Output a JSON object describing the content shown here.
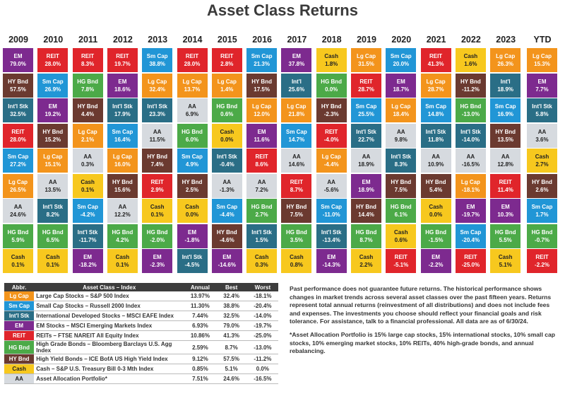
{
  "title": "Asset Class Returns",
  "colors": {
    "Lg Cap": "#f3941c",
    "Sm Cap": "#2196d6",
    "Int'l Stk": "#2a6e86",
    "EM": "#7d2a8f",
    "REIT": "#e0252b",
    "HG Bnd": "#4caa48",
    "HY Bnd": "#6b3a30",
    "Cash": "#f7c81e",
    "AA": "#d6dadf"
  },
  "chart_data": {
    "type": "table",
    "years": [
      "2009",
      "2010",
      "2011",
      "2012",
      "2013",
      "2014",
      "2015",
      "2016",
      "2017",
      "2018",
      "2019",
      "2020",
      "2021",
      "2022",
      "2023"
    ],
    "ytd_label": "YTD",
    "columns": [
      [
        [
          "EM",
          "79.0%"
        ],
        [
          "HY Bnd",
          "57.5%"
        ],
        [
          "Int'l Stk",
          "32.5%"
        ],
        [
          "REIT",
          "28.0%"
        ],
        [
          "Sm Cap",
          "27.2%"
        ],
        [
          "Lg Cap",
          "26.5%"
        ],
        [
          "AA",
          "24.6%"
        ],
        [
          "HG Bnd",
          "5.9%"
        ],
        [
          "Cash",
          "0.1%"
        ]
      ],
      [
        [
          "REIT",
          "28.0%"
        ],
        [
          "Sm Cap",
          "26.9%"
        ],
        [
          "EM",
          "19.2%"
        ],
        [
          "HY Bnd",
          "15.2%"
        ],
        [
          "Lg Cap",
          "15.1%"
        ],
        [
          "AA",
          "13.5%"
        ],
        [
          "Int'l Stk",
          "8.2%"
        ],
        [
          "HG Bnd",
          "6.5%"
        ],
        [
          "Cash",
          "0.1%"
        ]
      ],
      [
        [
          "REIT",
          "8.3%"
        ],
        [
          "HG Bnd",
          "7.8%"
        ],
        [
          "HY Bnd",
          "4.4%"
        ],
        [
          "Lg Cap",
          "2.1%"
        ],
        [
          "AA",
          "0.3%"
        ],
        [
          "Cash",
          "0.1%"
        ],
        [
          "Sm Cap",
          "-4.2%"
        ],
        [
          "Int'l Stk",
          "-11.7%"
        ],
        [
          "EM",
          "-18.2%"
        ]
      ],
      [
        [
          "REIT",
          "19.7%"
        ],
        [
          "EM",
          "18.6%"
        ],
        [
          "Int'l Stk",
          "17.9%"
        ],
        [
          "Sm Cap",
          "16.4%"
        ],
        [
          "Lg Cap",
          "16.0%"
        ],
        [
          "HY Bnd",
          "15.6%"
        ],
        [
          "AA",
          "12.2%"
        ],
        [
          "HG Bnd",
          "4.2%"
        ],
        [
          "Cash",
          "0.1%"
        ]
      ],
      [
        [
          "Sm Cap",
          "38.8%"
        ],
        [
          "Lg Cap",
          "32.4%"
        ],
        [
          "Int'l Stk",
          "23.3%"
        ],
        [
          "AA",
          "11.5%"
        ],
        [
          "HY Bnd",
          "7.4%"
        ],
        [
          "REIT",
          "2.9%"
        ],
        [
          "Cash",
          "0.1%"
        ],
        [
          "HG Bnd",
          "-2.0%"
        ],
        [
          "EM",
          "-2.3%"
        ]
      ],
      [
        [
          "REIT",
          "28.0%"
        ],
        [
          "Lg Cap",
          "13.7%"
        ],
        [
          "AA",
          "6.9%"
        ],
        [
          "HG Bnd",
          "6.0%"
        ],
        [
          "Sm Cap",
          "4.9%"
        ],
        [
          "HY Bnd",
          "2.5%"
        ],
        [
          "Cash",
          "0.0%"
        ],
        [
          "EM",
          "-1.8%"
        ],
        [
          "Int'l Stk",
          "-4.5%"
        ]
      ],
      [
        [
          "REIT",
          "2.8%"
        ],
        [
          "Lg Cap",
          "1.4%"
        ],
        [
          "HG Bnd",
          "0.6%"
        ],
        [
          "Cash",
          "0.0%"
        ],
        [
          "Int'l Stk",
          "-0.4%"
        ],
        [
          "AA",
          "-1.3%"
        ],
        [
          "Sm Cap",
          "-4.4%"
        ],
        [
          "HY Bnd",
          "-4.6%"
        ],
        [
          "EM",
          "-14.6%"
        ]
      ],
      [
        [
          "Sm Cap",
          "21.3%"
        ],
        [
          "HY Bnd",
          "17.5%"
        ],
        [
          "Lg Cap",
          "12.0%"
        ],
        [
          "EM",
          "11.6%"
        ],
        [
          "REIT",
          "8.6%"
        ],
        [
          "AA",
          "7.2%"
        ],
        [
          "HG Bnd",
          "2.7%"
        ],
        [
          "Int'l Stk",
          "1.5%"
        ],
        [
          "Cash",
          "0.3%"
        ]
      ],
      [
        [
          "EM",
          "37.8%"
        ],
        [
          "Int'l",
          "25.6%"
        ],
        [
          "Lg Cap",
          "21.8%"
        ],
        [
          "Sm Cap",
          "14.7%"
        ],
        [
          "AA",
          "14.6%"
        ],
        [
          "REIT",
          "8.7%"
        ],
        [
          "HY Bnd",
          "7.5%"
        ],
        [
          "HG Bnd",
          "3.5%"
        ],
        [
          "Cash",
          "0.8%"
        ]
      ],
      [
        [
          "Cash",
          "1.8%"
        ],
        [
          "HG Bnd",
          "0.0%"
        ],
        [
          "HY Bnd",
          "-2.3%"
        ],
        [
          "REIT",
          "-4.0%"
        ],
        [
          "Lg Cap",
          "-4.4%"
        ],
        [
          "AA",
          "-5.6%"
        ],
        [
          "Sm Cap",
          "-11.0%"
        ],
        [
          "Int'l Stk",
          "-13.4%"
        ],
        [
          "EM",
          "-14.3%"
        ]
      ],
      [
        [
          "Lg Cap",
          "31.5%"
        ],
        [
          "REIT",
          "28.7%"
        ],
        [
          "Sm Cap",
          "25.5%"
        ],
        [
          "Int'l Stk",
          "22.7%"
        ],
        [
          "AA",
          "18.9%"
        ],
        [
          "EM",
          "18.9%"
        ],
        [
          "HY Bnd",
          "14.4%"
        ],
        [
          "HG Bnd",
          "8.7%"
        ],
        [
          "Cash",
          "2.2%"
        ]
      ],
      [
        [
          "Sm Cap",
          "20.0%"
        ],
        [
          "EM",
          "18.7%"
        ],
        [
          "Lg Cap",
          "18.4%"
        ],
        [
          "AA",
          "9.8%"
        ],
        [
          "Int'l Stk",
          "8.3%"
        ],
        [
          "HY Bnd",
          "7.5%"
        ],
        [
          "HG Bnd",
          "6.1%"
        ],
        [
          "Cash",
          "0.6%"
        ],
        [
          "REIT",
          "-5.1%"
        ]
      ],
      [
        [
          "REIT",
          "41.3%"
        ],
        [
          "Lg Cap",
          "28.7%"
        ],
        [
          "Sm Cap",
          "14.8%"
        ],
        [
          "Int'l Stk",
          "11.8%"
        ],
        [
          "AA",
          "10.9%"
        ],
        [
          "HY Bnd",
          "5.4%"
        ],
        [
          "Cash",
          "0.0%"
        ],
        [
          "HG Bnd",
          "-1.5%"
        ],
        [
          "EM",
          "-2.2%"
        ]
      ],
      [
        [
          "Cash",
          "1.6%"
        ],
        [
          "HY Bnd",
          "-11.2%"
        ],
        [
          "HG Bnd",
          "-13.0%"
        ],
        [
          "Int'l Stk",
          "-14.0%"
        ],
        [
          "AA",
          "-16.5%"
        ],
        [
          "Lg Cap",
          "-18.1%"
        ],
        [
          "EM",
          "-19.7%"
        ],
        [
          "Sm Cap",
          "-20.4%"
        ],
        [
          "REIT",
          "-25.0%"
        ]
      ],
      [
        [
          "Lg Cap",
          "26.3%"
        ],
        [
          "Int'l",
          "18.9%"
        ],
        [
          "Sm Cap",
          "16.9%"
        ],
        [
          "HY Bnd",
          "13.5%"
        ],
        [
          "AA",
          "12.8%"
        ],
        [
          "REIT",
          "11.4%"
        ],
        [
          "EM",
          "10.3%"
        ],
        [
          "HG Bnd",
          "5.5%"
        ],
        [
          "Cash",
          "5.1%"
        ]
      ]
    ],
    "ytd": [
      [
        "Lg Cap",
        "15.3%"
      ],
      [
        "EM",
        "7.7%"
      ],
      [
        "Int'l Stk",
        "5.8%"
      ],
      [
        "AA",
        "3.6%"
      ],
      [
        "Cash",
        "2.7%"
      ],
      [
        "HY Bnd",
        "2.6%"
      ],
      [
        "Sm Cap",
        "1.7%"
      ],
      [
        "HG Bnd",
        "-0.7%"
      ],
      [
        "REIT",
        "-2.2%"
      ]
    ]
  },
  "legend": {
    "headers": [
      "Abbr.",
      "Asset Class – Index",
      "Annual",
      "Best",
      "Worst"
    ],
    "rows": [
      {
        "abbr": "Lg Cap",
        "name": "Large Cap Stocks – S&P 500 Index",
        "annual": "13.97%",
        "best": "32.4%",
        "worst": "-18.1%"
      },
      {
        "abbr": "Sm Cap",
        "name": "Small Cap Stocks – Russell 2000 Index",
        "annual": "11.30%",
        "best": "38.8%",
        "worst": "-20.4%"
      },
      {
        "abbr": "Int'l Stk",
        "name": "International Developed Stocks – MSCI EAFE Index",
        "annual": "7.44%",
        "best": "32.5%",
        "worst": "-14.0%"
      },
      {
        "abbr": "EM",
        "name": "EM Stocks – MSCI Emerging Markets Index",
        "annual": "6.93%",
        "best": "79.0%",
        "worst": "-19.7%"
      },
      {
        "abbr": "REIT",
        "name": "REITs – FTSE NAREIT All Equity Index",
        "annual": "10.86%",
        "best": "41.3%",
        "worst": "-25.0%"
      },
      {
        "abbr": "HG Bnd",
        "name": "High Grade Bonds – Bloomberg Barclays U.S. Agg Index",
        "annual": "2.59%",
        "best": "8.7%",
        "worst": "-13.0%"
      },
      {
        "abbr": "HY Bnd",
        "name": "High Yield Bonds – ICE BofA US High Yield Index",
        "annual": "9.12%",
        "best": "57.5%",
        "worst": "-11.2%"
      },
      {
        "abbr": "Cash",
        "name": "Cash – S&P U.S. Treasury Bill 0-3 Mth Index",
        "annual": "0.85%",
        "best": "5.1%",
        "worst": "0.0%"
      },
      {
        "abbr": "AA",
        "name": "Asset Allocation Portfolio*",
        "annual": "7.51%",
        "best": "24.6%",
        "worst": "-16.5%"
      }
    ]
  },
  "notes": {
    "disclaimer": "Past performance does not guarantee future returns. The historical performance shows changes in market trends across several asset classes over the past fifteen years. Returns represent total annual returns (reinvestment of all distributions) and does not include fees and expenses. The investments you choose should reflect your financial goals and risk tolerance. For assistance, talk to a financial professional. All data are as of 6/30/24.",
    "footnote": "*Asset Allocation Portfolio is 15% large cap stocks, 15% international stocks, 10% small cap stocks, 10% emerging market stocks, 10% REITs, 40% high-grade bonds, and annual rebalancing."
  }
}
